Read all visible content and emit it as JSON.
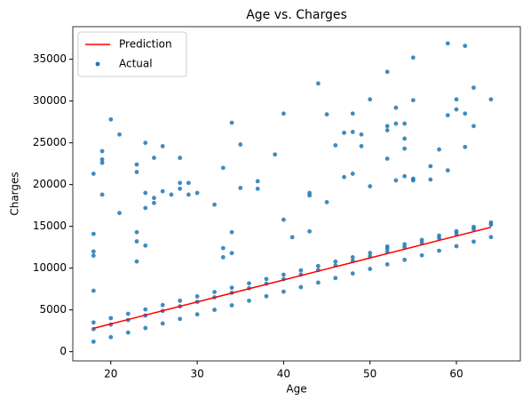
{
  "chart_data": {
    "type": "scatter",
    "title": "Age vs. Charges",
    "x_label": "Age",
    "y_label": "Charges",
    "xlim": [
      15.6,
      67.4
    ],
    "ylim": [
      -1100,
      38900
    ],
    "xticks": [
      20,
      30,
      40,
      50,
      60
    ],
    "yticks": [
      0,
      5000,
      10000,
      15000,
      20000,
      25000,
      30000,
      35000
    ],
    "legend": "upper left",
    "series": [
      {
        "name": "Prediction",
        "type": "line",
        "color": "#ff0000",
        "x": [
          18,
          64
        ],
        "values": [
          2800,
          14900
        ]
      },
      {
        "name": "Actual",
        "type": "points",
        "color": "#1f77b4",
        "x": [
          18,
          18,
          18,
          20,
          20,
          20,
          22,
          22,
          22,
          24,
          24,
          24,
          26,
          26,
          26,
          28,
          28,
          28,
          30,
          30,
          30,
          32,
          32,
          32,
          34,
          34,
          34,
          36,
          36,
          36,
          38,
          38,
          38,
          40,
          40,
          40,
          42,
          42,
          42,
          44,
          44,
          44,
          46,
          46,
          46,
          48,
          48,
          48,
          50,
          50,
          50,
          52,
          52,
          52,
          54,
          54,
          54,
          56,
          56,
          56,
          58,
          58,
          58,
          60,
          60,
          60,
          62,
          62,
          62,
          64,
          64,
          64,
          18,
          18,
          18,
          18,
          18,
          19,
          19,
          19,
          19,
          20,
          21,
          21,
          23,
          23,
          23,
          23,
          23,
          24,
          24,
          24,
          24,
          25,
          25,
          25,
          26,
          26,
          27,
          28,
          28,
          28,
          29,
          29,
          30,
          32,
          33,
          33,
          33,
          34,
          34,
          34,
          35,
          35,
          37,
          37,
          39,
          40,
          40,
          41,
          43,
          43,
          43,
          44,
          45,
          45,
          46,
          47,
          47,
          48,
          48,
          48,
          49,
          49,
          50,
          50,
          52,
          52,
          52,
          52,
          52,
          53,
          53,
          53,
          54,
          54,
          54,
          54,
          55,
          55,
          55,
          55,
          57,
          57,
          58,
          59,
          59,
          59,
          60,
          60,
          61,
          61,
          61,
          62,
          62,
          64
        ],
        "values": [
          1200,
          2700,
          3500,
          1744,
          3244,
          4020,
          2288,
          3788,
          4540,
          2832,
          4332,
          5060,
          3376,
          4876,
          5580,
          3920,
          5420,
          6100,
          4464,
          5964,
          6620,
          5008,
          6508,
          7140,
          5552,
          7052,
          7660,
          6096,
          7596,
          8180,
          6640,
          8140,
          8700,
          7184,
          8684,
          9220,
          7728,
          9228,
          9740,
          8272,
          9772,
          10260,
          8816,
          10316,
          10780,
          9360,
          10860,
          11300,
          9904,
          11404,
          11820,
          10448,
          11948,
          12340,
          10992,
          12492,
          12860,
          11536,
          13036,
          13380,
          12080,
          13580,
          13900,
          12624,
          14124,
          14420,
          13168,
          14668,
          14940,
          13712,
          15212,
          15460,
          21300,
          14100,
          12000,
          11500,
          7300,
          24000,
          22600,
          23000,
          18800,
          27800,
          26000,
          16600,
          22400,
          21500,
          14300,
          13200,
          10800,
          25000,
          19000,
          17200,
          12700,
          23200,
          18400,
          17800,
          24600,
          19200,
          18800,
          23200,
          20200,
          19500,
          20200,
          18800,
          19000,
          17600,
          22000,
          12400,
          11300,
          27400,
          14300,
          11800,
          24800,
          19600,
          20400,
          19500,
          23600,
          28500,
          15800,
          13700,
          19000,
          18700,
          14400,
          32100,
          28400,
          17900,
          24700,
          26200,
          20900,
          28500,
          26300,
          21300,
          26000,
          24600,
          30200,
          19800,
          33500,
          27000,
          26500,
          23100,
          12600,
          29200,
          27300,
          20500,
          27300,
          25500,
          24300,
          21000,
          35200,
          30100,
          20700,
          20500,
          22200,
          20600,
          24200,
          36900,
          28300,
          21700,
          30200,
          29000,
          36600,
          28500,
          24500,
          31600,
          27000,
          30200
        ]
      }
    ]
  }
}
